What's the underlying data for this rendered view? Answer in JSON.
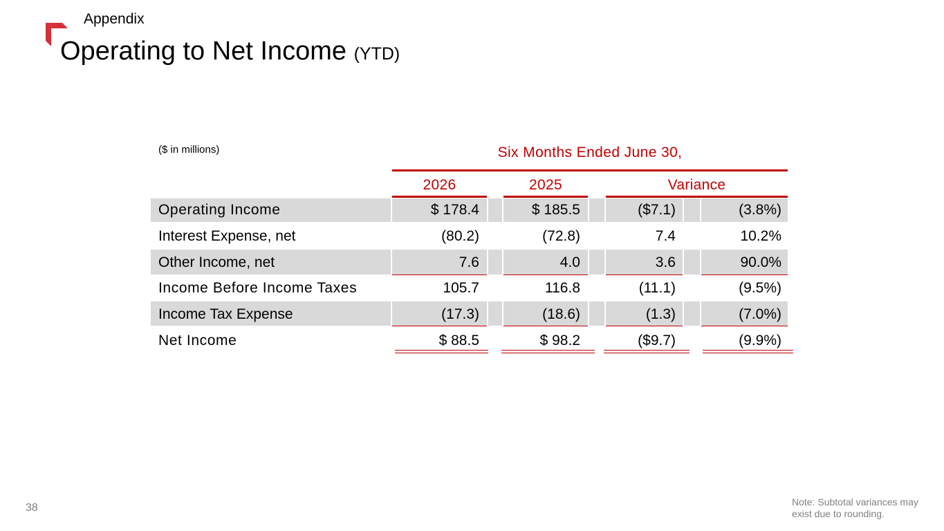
{
  "header": {
    "section": "Appendix",
    "title": "Operating to Net Income",
    "title_suffix": "(YTD)"
  },
  "table": {
    "units_note": "($ in millions)",
    "period_header": "Six Months Ended June 30,",
    "columns": {
      "y2026": "2026",
      "y2025": "2025",
      "variance": "Variance"
    },
    "rows": [
      {
        "label": "Operating Income",
        "v2026": "$ 178.4",
        "v2025": "$ 185.5",
        "var_amt": "($7.1)",
        "var_pct": "(3.8%)"
      },
      {
        "label": "Interest Expense, net",
        "v2026": "(80.2)",
        "v2025": "(72.8)",
        "var_amt": "7.4",
        "var_pct": "10.2%"
      },
      {
        "label": "Other Income, net",
        "v2026": "7.6",
        "v2025": "4.0",
        "var_amt": "3.6",
        "var_pct": "90.0%"
      },
      {
        "label": "Income Before Income Taxes",
        "v2026": "105.7",
        "v2025": "116.8",
        "var_amt": "(11.1)",
        "var_pct": "(9.5%)"
      },
      {
        "label": "Income Tax Expense",
        "v2026": "(17.3)",
        "v2025": "(18.6)",
        "var_amt": "(1.3)",
        "var_pct": "(7.0%)"
      },
      {
        "label": "Net Income",
        "v2026": "$ 88.5",
        "v2025": "$ 98.2",
        "var_amt": "($9.7)",
        "var_pct": "(9.9%)"
      }
    ]
  },
  "footer": {
    "page_number": "38",
    "note": "Note: Subtotal variances may exist due to rounding."
  },
  "colors": {
    "accent": "#c00000",
    "logo": "#d6303a",
    "row_shading": "#d9d9d9",
    "muted_text": "#808080"
  }
}
